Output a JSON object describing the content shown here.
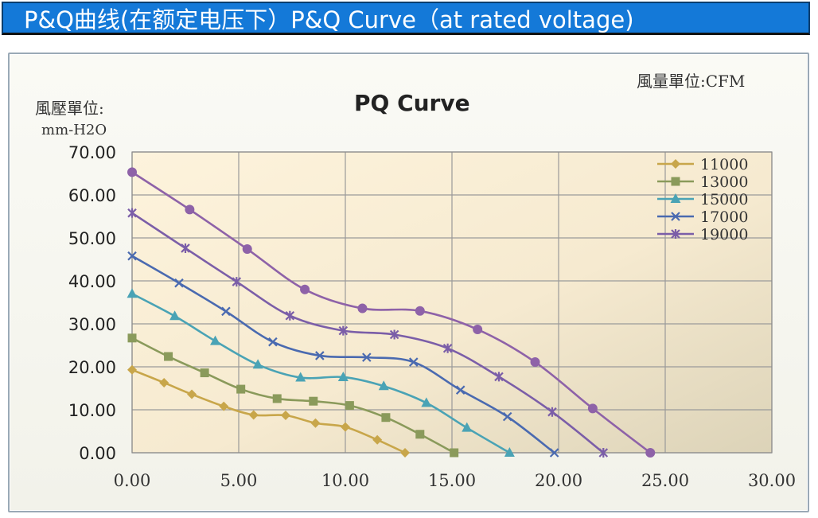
{
  "header": {
    "title": "P&Q曲线(在额定电压下）P&Q Curve（at rated voltage)"
  },
  "chart_data": {
    "type": "line",
    "title": "PQ Curve",
    "ylabel_line1": "風壓單位:",
    "ylabel_line2": "mm-H2O",
    "xunit_label": "風量單位:CFM",
    "xlim": [
      0,
      30
    ],
    "ylim": [
      0,
      70
    ],
    "x_ticks": [
      "0.00",
      "5.00",
      "10.00",
      "15.00",
      "20.00",
      "25.00",
      "30.00"
    ],
    "y_ticks": [
      "0.00",
      "10.00",
      "20.00",
      "30.00",
      "40.00",
      "50.00",
      "60.00",
      "70.00"
    ],
    "grid": true,
    "legend_position": "top-right",
    "series": [
      {
        "name": "11000",
        "color": "#c8a64a",
        "marker": "diamond",
        "x": [
          0,
          1.5,
          2.8,
          4.3,
          5.7,
          7.2,
          8.6,
          10.0,
          11.5,
          12.8
        ],
        "y": [
          19.3,
          16.3,
          13.6,
          10.8,
          8.8,
          8.7,
          6.9,
          6.0,
          3.0,
          0
        ]
      },
      {
        "name": "13000",
        "color": "#8a9a5b",
        "marker": "square",
        "x": [
          0,
          1.7,
          3.4,
          5.1,
          6.8,
          8.5,
          10.2,
          11.9,
          13.5,
          15.1
        ],
        "y": [
          26.7,
          22.4,
          18.6,
          14.8,
          12.6,
          12.0,
          11.0,
          8.2,
          4.3,
          0
        ]
      },
      {
        "name": "15000",
        "color": "#4aa3b5",
        "marker": "triangle",
        "x": [
          0,
          2.0,
          3.9,
          5.9,
          7.9,
          9.9,
          11.8,
          13.8,
          15.7,
          17.7
        ],
        "y": [
          37.0,
          31.8,
          26.0,
          20.5,
          17.5,
          17.6,
          15.5,
          11.6,
          5.8,
          0
        ]
      },
      {
        "name": "17000",
        "color": "#4a6ab0",
        "marker": "x",
        "x": [
          0,
          2.2,
          4.4,
          6.6,
          8.8,
          11.0,
          13.2,
          15.4,
          17.6,
          19.8
        ],
        "y": [
          45.8,
          39.5,
          32.9,
          25.8,
          22.6,
          22.2,
          21.1,
          14.6,
          8.4,
          0
        ]
      },
      {
        "name": "19000",
        "color": "#7b5ea8",
        "marker": "asterisk",
        "x": [
          0,
          2.5,
          4.9,
          7.4,
          9.9,
          12.3,
          14.8,
          17.2,
          19.7,
          22.1
        ],
        "y": [
          55.8,
          47.6,
          39.8,
          31.9,
          28.4,
          27.5,
          24.3,
          17.7,
          9.5,
          0
        ]
      },
      {
        "name": "",
        "color": "#8e62a8",
        "marker": "circle",
        "x": [
          0,
          2.7,
          5.4,
          8.1,
          10.8,
          13.5,
          16.2,
          18.9,
          21.6,
          24.3
        ],
        "y": [
          65.3,
          56.6,
          47.4,
          38.0,
          33.6,
          33.0,
          28.7,
          21.1,
          10.3,
          0
        ]
      }
    ]
  }
}
